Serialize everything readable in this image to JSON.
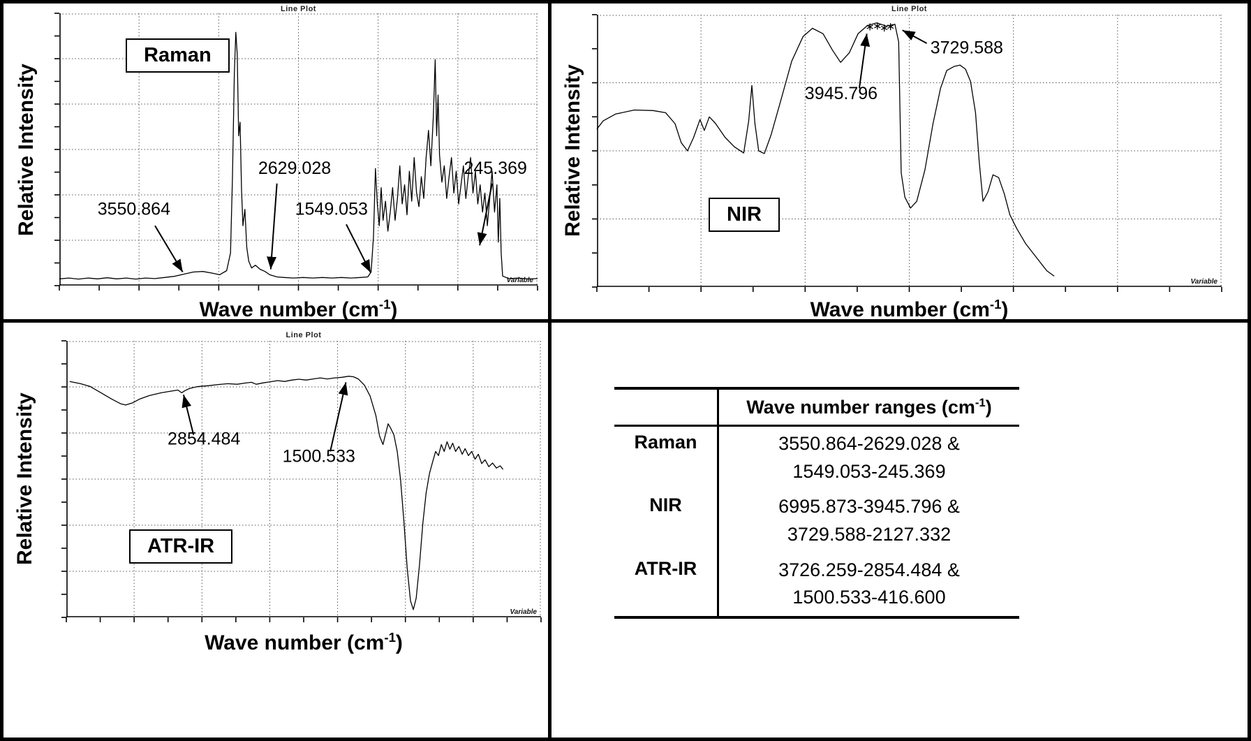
{
  "plots": {
    "raman": {
      "label": "Raman",
      "mini_title": "Line Plot",
      "corner_label": "Variable"
    },
    "nir": {
      "label": "NIR",
      "mini_title": "Line Plot",
      "corner_label": "Variable"
    },
    "atr": {
      "label": "ATR-IR",
      "mini_title": "Line Plot",
      "corner_label": "Variable"
    }
  },
  "axis": {
    "x_pre": "Wave number (cm",
    "x_sup": "-1",
    "x_post": ")",
    "y_label": "Relative Intensity"
  },
  "table": {
    "header": {
      "pre": "Wave number ranges (cm",
      "sup": "-1",
      "post": ")"
    },
    "rows": [
      {
        "label": "Raman",
        "line1": "3550.864-2629.028 &",
        "line2": "1549.053-245.369"
      },
      {
        "label": "NIR",
        "line1": "6995.873-3945.796 &",
        "line2": "3729.588-2127.332"
      },
      {
        "label": "ATR-IR",
        "line1": "3726.259-2854.484 &",
        "line2": "1500.533-416.600"
      }
    ]
  },
  "chart_data": [
    {
      "id": "raman",
      "type": "line",
      "title": "Line Plot",
      "series_label": "Raman",
      "xlabel": "Wave number (cm⁻¹)",
      "ylabel": "Relative Intensity",
      "axis_note": "no numeric tick labels; x,y normalized 0-1, y from baseline",
      "grid": {
        "cols": 6,
        "rows": 6
      },
      "annotations": [
        {
          "label": "3550.864",
          "text_x": 0.156,
          "text_y": 0.26,
          "anchor": "middle",
          "arrow": [
            0.2,
            0.22,
            0.258,
            0.05
          ]
        },
        {
          "label": "2629.028",
          "text_x": 0.492,
          "text_y": 0.41,
          "anchor": "middle",
          "arrow": [
            0.455,
            0.375,
            0.442,
            0.06
          ]
        },
        {
          "label": "1549.053",
          "text_x": 0.569,
          "text_y": 0.26,
          "anchor": "middle",
          "arrow": [
            0.6,
            0.225,
            0.651,
            0.048
          ]
        },
        {
          "label": "245.369",
          "text_x": 0.912,
          "text_y": 0.41,
          "anchor": "middle",
          "arrow": [
            0.905,
            0.375,
            0.879,
            0.148
          ]
        }
      ],
      "points": [
        [
          0,
          0.025
        ],
        [
          0.02,
          0.028
        ],
        [
          0.04,
          0.024
        ],
        [
          0.06,
          0.028
        ],
        [
          0.08,
          0.025
        ],
        [
          0.1,
          0.029
        ],
        [
          0.12,
          0.025
        ],
        [
          0.14,
          0.028
        ],
        [
          0.16,
          0.024
        ],
        [
          0.18,
          0.028
        ],
        [
          0.2,
          0.026
        ],
        [
          0.22,
          0.03
        ],
        [
          0.24,
          0.034
        ],
        [
          0.26,
          0.042
        ],
        [
          0.28,
          0.05
        ],
        [
          0.3,
          0.052
        ],
        [
          0.32,
          0.046
        ],
        [
          0.335,
          0.04
        ],
        [
          0.35,
          0.055
        ],
        [
          0.358,
          0.12
        ],
        [
          0.362,
          0.4
        ],
        [
          0.366,
          0.78
        ],
        [
          0.369,
          0.93
        ],
        [
          0.372,
          0.85
        ],
        [
          0.375,
          0.55
        ],
        [
          0.378,
          0.6
        ],
        [
          0.381,
          0.35
        ],
        [
          0.384,
          0.22
        ],
        [
          0.388,
          0.28
        ],
        [
          0.392,
          0.14
        ],
        [
          0.396,
          0.09
        ],
        [
          0.402,
          0.065
        ],
        [
          0.41,
          0.075
        ],
        [
          0.42,
          0.06
        ],
        [
          0.43,
          0.052
        ],
        [
          0.44,
          0.04
        ],
        [
          0.455,
          0.032
        ],
        [
          0.47,
          0.03
        ],
        [
          0.49,
          0.028
        ],
        [
          0.51,
          0.03
        ],
        [
          0.53,
          0.028
        ],
        [
          0.55,
          0.03
        ],
        [
          0.57,
          0.028
        ],
        [
          0.59,
          0.03
        ],
        [
          0.61,
          0.028
        ],
        [
          0.63,
          0.03
        ],
        [
          0.645,
          0.032
        ],
        [
          0.652,
          0.05
        ],
        [
          0.657,
          0.18
        ],
        [
          0.661,
          0.43
        ],
        [
          0.665,
          0.3
        ],
        [
          0.669,
          0.22
        ],
        [
          0.673,
          0.36
        ],
        [
          0.677,
          0.24
        ],
        [
          0.682,
          0.31
        ],
        [
          0.687,
          0.2
        ],
        [
          0.692,
          0.27
        ],
        [
          0.697,
          0.36
        ],
        [
          0.702,
          0.24
        ],
        [
          0.707,
          0.32
        ],
        [
          0.712,
          0.44
        ],
        [
          0.717,
          0.3
        ],
        [
          0.722,
          0.37
        ],
        [
          0.727,
          0.26
        ],
        [
          0.732,
          0.42
        ],
        [
          0.737,
          0.31
        ],
        [
          0.742,
          0.47
        ],
        [
          0.747,
          0.34
        ],
        [
          0.752,
          0.29
        ],
        [
          0.757,
          0.4
        ],
        [
          0.762,
          0.32
        ],
        [
          0.767,
          0.47
        ],
        [
          0.772,
          0.57
        ],
        [
          0.777,
          0.44
        ],
        [
          0.782,
          0.62
        ],
        [
          0.786,
          0.83
        ],
        [
          0.789,
          0.55
        ],
        [
          0.792,
          0.7
        ],
        [
          0.795,
          0.48
        ],
        [
          0.8,
          0.38
        ],
        [
          0.805,
          0.44
        ],
        [
          0.81,
          0.32
        ],
        [
          0.815,
          0.4
        ],
        [
          0.82,
          0.47
        ],
        [
          0.825,
          0.34
        ],
        [
          0.83,
          0.42
        ],
        [
          0.835,
          0.3
        ],
        [
          0.84,
          0.37
        ],
        [
          0.845,
          0.44
        ],
        [
          0.85,
          0.32
        ],
        [
          0.855,
          0.4
        ],
        [
          0.86,
          0.47
        ],
        [
          0.865,
          0.34
        ],
        [
          0.87,
          0.42
        ],
        [
          0.875,
          0.3
        ],
        [
          0.88,
          0.37
        ],
        [
          0.885,
          0.27
        ],
        [
          0.89,
          0.34
        ],
        [
          0.895,
          0.22
        ],
        [
          0.9,
          0.32
        ],
        [
          0.905,
          0.42
        ],
        [
          0.91,
          0.27
        ],
        [
          0.915,
          0.37
        ],
        [
          0.918,
          0.16
        ],
        [
          0.921,
          0.32
        ],
        [
          0.924,
          0.12
        ],
        [
          0.927,
          0.035
        ],
        [
          0.94,
          0.026
        ],
        [
          0.96,
          0.028
        ],
        [
          0.98,
          0.025
        ],
        [
          1,
          0.026
        ]
      ]
    },
    {
      "id": "nir",
      "type": "line",
      "title": "Line Plot",
      "series_label": "NIR",
      "xlabel": "Wave number (cm⁻¹)",
      "ylabel": "Relative Intensity",
      "axis_note": "no numeric tick labels; x,y normalized 0-1, y from baseline",
      "grid": {
        "cols": 6,
        "rows": 4
      },
      "annotations": [
        {
          "label": "3945.796",
          "text_x": 0.391,
          "text_y": 0.69,
          "anchor": "middle",
          "arrow": [
            0.42,
            0.73,
            0.432,
            0.93
          ]
        },
        {
          "label": "3729.588",
          "text_x": 0.592,
          "text_y": 0.858,
          "anchor": "middle",
          "arrow": [
            0.528,
            0.895,
            0.489,
            0.943
          ]
        }
      ],
      "markers": [
        [
          0.437,
          0.955
        ],
        [
          0.449,
          0.958
        ],
        [
          0.46,
          0.951
        ],
        [
          0.47,
          0.956
        ]
      ],
      "points": [
        [
          0,
          0.58
        ],
        [
          0.01,
          0.61
        ],
        [
          0.03,
          0.635
        ],
        [
          0.06,
          0.65
        ],
        [
          0.09,
          0.648
        ],
        [
          0.11,
          0.64
        ],
        [
          0.125,
          0.6
        ],
        [
          0.135,
          0.53
        ],
        [
          0.145,
          0.5
        ],
        [
          0.155,
          0.55
        ],
        [
          0.165,
          0.615
        ],
        [
          0.172,
          0.575
        ],
        [
          0.18,
          0.625
        ],
        [
          0.19,
          0.6
        ],
        [
          0.205,
          0.55
        ],
        [
          0.22,
          0.515
        ],
        [
          0.235,
          0.492
        ],
        [
          0.243,
          0.61
        ],
        [
          0.248,
          0.74
        ],
        [
          0.253,
          0.6
        ],
        [
          0.259,
          0.5
        ],
        [
          0.268,
          0.49
        ],
        [
          0.279,
          0.56
        ],
        [
          0.295,
          0.69
        ],
        [
          0.312,
          0.83
        ],
        [
          0.33,
          0.92
        ],
        [
          0.345,
          0.95
        ],
        [
          0.362,
          0.93
        ],
        [
          0.377,
          0.87
        ],
        [
          0.39,
          0.825
        ],
        [
          0.404,
          0.86
        ],
        [
          0.418,
          0.93
        ],
        [
          0.433,
          0.96
        ],
        [
          0.448,
          0.97
        ],
        [
          0.463,
          0.958
        ],
        [
          0.477,
          0.965
        ],
        [
          0.483,
          0.9
        ],
        [
          0.485,
          0.66
        ],
        [
          0.487,
          0.42
        ],
        [
          0.493,
          0.33
        ],
        [
          0.502,
          0.29
        ],
        [
          0.512,
          0.315
        ],
        [
          0.525,
          0.43
        ],
        [
          0.538,
          0.6
        ],
        [
          0.55,
          0.73
        ],
        [
          0.56,
          0.795
        ],
        [
          0.572,
          0.81
        ],
        [
          0.581,
          0.815
        ],
        [
          0.59,
          0.8
        ],
        [
          0.598,
          0.755
        ],
        [
          0.606,
          0.64
        ],
        [
          0.612,
          0.46
        ],
        [
          0.618,
          0.315
        ],
        [
          0.626,
          0.35
        ],
        [
          0.634,
          0.412
        ],
        [
          0.643,
          0.402
        ],
        [
          0.652,
          0.343
        ],
        [
          0.661,
          0.265
        ],
        [
          0.672,
          0.215
        ],
        [
          0.686,
          0.16
        ],
        [
          0.703,
          0.11
        ],
        [
          0.72,
          0.06
        ],
        [
          0.732,
          0.04
        ]
      ]
    },
    {
      "id": "atr",
      "type": "line",
      "title": "Line Plot",
      "series_label": "ATR-IR",
      "xlabel": "Wave number (cm⁻¹)",
      "ylabel": "Relative Intensity",
      "axis_note": "no numeric tick labels; x,y normalized 0-1, y from baseline",
      "grid": {
        "cols": 7,
        "rows": 6
      },
      "annotations": [
        {
          "label": "2854.484",
          "text_x": 0.29,
          "text_y": 0.625,
          "anchor": "middle",
          "arrow": [
            0.268,
            0.66,
            0.247,
            0.805
          ]
        },
        {
          "label": "1500.533",
          "text_x": 0.532,
          "text_y": 0.562,
          "anchor": "middle",
          "arrow": [
            0.556,
            0.6,
            0.589,
            0.85
          ]
        }
      ],
      "points": [
        [
          0.007,
          0.853
        ],
        [
          0.03,
          0.845
        ],
        [
          0.05,
          0.835
        ],
        [
          0.075,
          0.81
        ],
        [
          0.095,
          0.79
        ],
        [
          0.115,
          0.772
        ],
        [
          0.125,
          0.768
        ],
        [
          0.14,
          0.776
        ],
        [
          0.155,
          0.79
        ],
        [
          0.175,
          0.802
        ],
        [
          0.2,
          0.812
        ],
        [
          0.22,
          0.818
        ],
        [
          0.235,
          0.822
        ],
        [
          0.243,
          0.812
        ],
        [
          0.25,
          0.82
        ],
        [
          0.26,
          0.828
        ],
        [
          0.275,
          0.834
        ],
        [
          0.3,
          0.838
        ],
        [
          0.32,
          0.842
        ],
        [
          0.34,
          0.845
        ],
        [
          0.36,
          0.843
        ],
        [
          0.375,
          0.847
        ],
        [
          0.39,
          0.85
        ],
        [
          0.4,
          0.843
        ],
        [
          0.415,
          0.848
        ],
        [
          0.43,
          0.852
        ],
        [
          0.445,
          0.856
        ],
        [
          0.46,
          0.853
        ],
        [
          0.475,
          0.858
        ],
        [
          0.49,
          0.861
        ],
        [
          0.505,
          0.858
        ],
        [
          0.52,
          0.862
        ],
        [
          0.535,
          0.866
        ],
        [
          0.55,
          0.862
        ],
        [
          0.565,
          0.866
        ],
        [
          0.58,
          0.868
        ],
        [
          0.595,
          0.872
        ],
        [
          0.605,
          0.87
        ],
        [
          0.615,
          0.862
        ],
        [
          0.628,
          0.84
        ],
        [
          0.64,
          0.8
        ],
        [
          0.652,
          0.73
        ],
        [
          0.66,
          0.655
        ],
        [
          0.667,
          0.625
        ],
        [
          0.672,
          0.66
        ],
        [
          0.678,
          0.7
        ],
        [
          0.683,
          0.685
        ],
        [
          0.69,
          0.66
        ],
        [
          0.697,
          0.6
        ],
        [
          0.704,
          0.5
        ],
        [
          0.711,
          0.35
        ],
        [
          0.718,
          0.18
        ],
        [
          0.725,
          0.06
        ],
        [
          0.731,
          0.028
        ],
        [
          0.737,
          0.07
        ],
        [
          0.744,
          0.19
        ],
        [
          0.751,
          0.34
        ],
        [
          0.758,
          0.45
        ],
        [
          0.765,
          0.52
        ],
        [
          0.772,
          0.565
        ],
        [
          0.778,
          0.6
        ],
        [
          0.784,
          0.585
        ],
        [
          0.79,
          0.625
        ],
        [
          0.796,
          0.6
        ],
        [
          0.802,
          0.635
        ],
        [
          0.808,
          0.608
        ],
        [
          0.814,
          0.63
        ],
        [
          0.82,
          0.6
        ],
        [
          0.827,
          0.618
        ],
        [
          0.834,
          0.59
        ],
        [
          0.84,
          0.61
        ],
        [
          0.847,
          0.585
        ],
        [
          0.854,
          0.6
        ],
        [
          0.861,
          0.572
        ],
        [
          0.868,
          0.59
        ],
        [
          0.875,
          0.556
        ],
        [
          0.882,
          0.57
        ],
        [
          0.89,
          0.545
        ],
        [
          0.898,
          0.558
        ],
        [
          0.906,
          0.54
        ],
        [
          0.914,
          0.548
        ],
        [
          0.92,
          0.535
        ]
      ]
    }
  ]
}
